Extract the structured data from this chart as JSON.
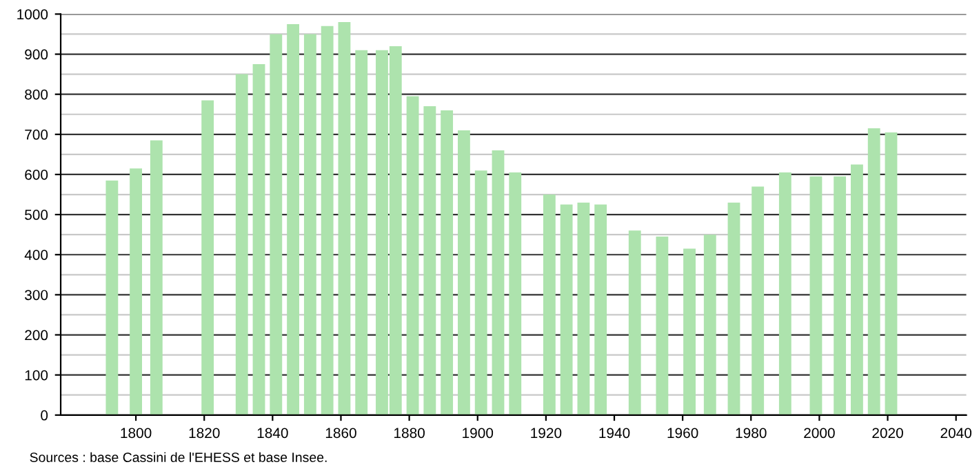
{
  "chart_data": {
    "type": "bar",
    "color": "#ade3ad",
    "x": [
      1793,
      1800,
      1806,
      1821,
      1831,
      1836,
      1841,
      1846,
      1851,
      1856,
      1861,
      1866,
      1872,
      1876,
      1881,
      1886,
      1891,
      1896,
      1901,
      1906,
      1911,
      1921,
      1926,
      1931,
      1936,
      1946,
      1954,
      1962,
      1968,
      1975,
      1982,
      1990,
      1999,
      2006,
      2011,
      2016,
      2021
    ],
    "values": [
      585,
      615,
      685,
      785,
      850,
      875,
      950,
      975,
      950,
      970,
      980,
      910,
      910,
      920,
      795,
      770,
      760,
      710,
      610,
      660,
      605,
      550,
      525,
      530,
      525,
      460,
      445,
      415,
      450,
      530,
      570,
      605,
      595,
      595,
      625,
      715,
      705
    ],
    "xlim": [
      1778,
      2043
    ],
    "xticks": [
      1800,
      1820,
      1840,
      1860,
      1880,
      1900,
      1920,
      1940,
      1960,
      1980,
      2000,
      2020,
      2040
    ],
    "ylim": [
      0,
      1000
    ],
    "yticks": [
      0,
      100,
      200,
      300,
      400,
      500,
      600,
      700,
      800,
      900,
      1000
    ],
    "grid": "y",
    "legend": false,
    "annotations": [
      "Sources : base Cassini de l'EHESS et base Insee."
    ]
  }
}
